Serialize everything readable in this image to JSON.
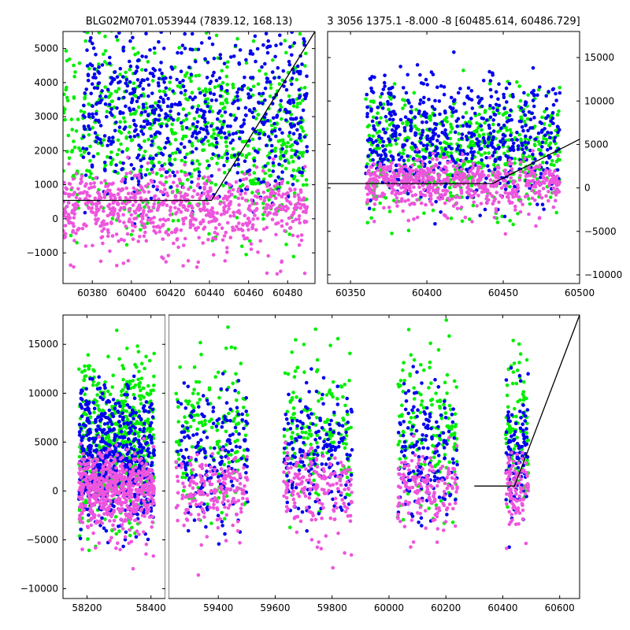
{
  "titles": {
    "left": "BLG02M0701.053944 (7839.12, 168.13)",
    "right": "3 3056 1375.1 -8.000 -8 [60485.614, 60486.729]"
  },
  "colors": {
    "series_green": "#00ee00",
    "series_blue": "#0000ee",
    "series_pink": "#ee55dd",
    "model_line": "#000000"
  },
  "chart_data": [
    {
      "id": "panel-top-left",
      "type": "scatter",
      "title": "BLG02M0701.053944 (7839.12, 168.13)",
      "xlim": [
        60365,
        60494
      ],
      "ylim": [
        -1900,
        5500
      ],
      "x_ticks": [
        60380,
        60400,
        60420,
        60440,
        60460,
        60480
      ],
      "y_ticks": [
        -1000,
        0,
        1000,
        2000,
        3000,
        4000,
        5000
      ],
      "y_axis_side": "left",
      "grid": false,
      "legend": "none",
      "series": [
        {
          "color": "#00ee00",
          "x_range": [
            60365,
            60490
          ],
          "y_center": 2500,
          "y_spread": 2000
        },
        {
          "color": "#0000ee",
          "x_range": [
            60375,
            60490
          ],
          "y_center": 3200,
          "y_spread": 1800
        },
        {
          "color": "#ee55dd",
          "x_range": [
            60365,
            60490
          ],
          "y_center": 400,
          "y_spread": 700
        }
      ],
      "model_line": [
        [
          60365,
          540
        ],
        [
          60441,
          540
        ],
        [
          60494,
          5500
        ]
      ]
    },
    {
      "id": "panel-top-right",
      "type": "scatter",
      "title": "3 3056 1375.1 -8.000 -8 [60485.614, 60486.729]",
      "xlim": [
        60335,
        60500
      ],
      "ylim": [
        -11000,
        18000
      ],
      "x_ticks": [
        60350,
        60400,
        60450,
        60500
      ],
      "y_ticks": [
        -10000,
        -5000,
        0,
        5000,
        10000,
        15000
      ],
      "y_axis_side": "right",
      "grid": false,
      "legend": "none",
      "series": [
        {
          "color": "#00ee00",
          "x_range": [
            60360,
            60487
          ],
          "y_center": 4000,
          "y_spread": 5000
        },
        {
          "color": "#0000ee",
          "x_range": [
            60360,
            60487
          ],
          "y_center": 6000,
          "y_spread": 5000
        },
        {
          "color": "#ee55dd",
          "x_range": [
            60360,
            60487
          ],
          "y_center": 800,
          "y_spread": 1800
        }
      ],
      "model_line": [
        [
          60335,
          500
        ],
        [
          60443,
          500
        ],
        [
          60500,
          5600
        ]
      ]
    },
    {
      "id": "panel-bottom-left",
      "type": "scatter",
      "xlim": [
        58125,
        58445
      ],
      "ylim": [
        -11000,
        18000
      ],
      "x_ticks": [
        58200,
        58400
      ],
      "y_ticks": [
        -10000,
        -5000,
        0,
        5000,
        10000,
        15000
      ],
      "y_axis_side": "left",
      "grid": false,
      "legend": "none",
      "groups": [
        [
          58175,
          58410
        ]
      ],
      "series": [
        {
          "color": "#00ee00",
          "y_center": 5000,
          "y_spread": 6000
        },
        {
          "color": "#0000ee",
          "y_center": 3500,
          "y_spread": 5000
        },
        {
          "color": "#ee55dd",
          "y_center": 500,
          "y_spread": 2500
        }
      ]
    },
    {
      "id": "panel-bottom-main",
      "type": "scatter",
      "xlim": [
        59225,
        60670
      ],
      "ylim": [
        -11000,
        18000
      ],
      "x_ticks": [
        59400,
        59600,
        59800,
        60000,
        60200,
        60400,
        60600
      ],
      "y_ticks": [],
      "grid": false,
      "legend": "none",
      "groups": [
        [
          59250,
          59505
        ],
        [
          59630,
          59870
        ],
        [
          60030,
          60240
        ],
        [
          60410,
          60490
        ]
      ],
      "series": [
        {
          "color": "#00ee00",
          "y_center": 6000,
          "y_spread": 6000
        },
        {
          "color": "#0000ee",
          "y_center": 4000,
          "y_spread": 5000
        },
        {
          "color": "#ee55dd",
          "y_center": 600,
          "y_spread": 2500
        }
      ],
      "model_line": [
        [
          60300,
          500
        ],
        [
          60441,
          500
        ],
        [
          60670,
          18000
        ]
      ]
    }
  ]
}
